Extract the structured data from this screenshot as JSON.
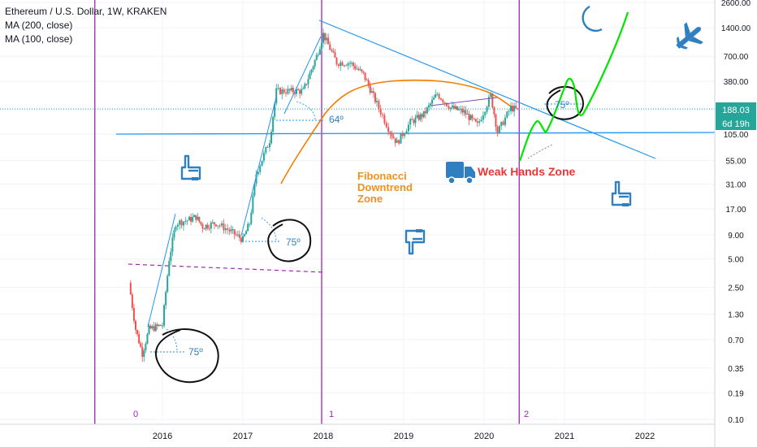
{
  "legend": {
    "title": "Ethereum / U.S. Dollar, 1W, KRAKEN",
    "ma200": "MA (200, close)",
    "ma100": "MA (100, close)"
  },
  "price_badge": {
    "value": "188.03",
    "countdown": "6d 19h",
    "color": "#26a69a"
  },
  "annotations": {
    "fib_line1": "Fibonacci",
    "fib_line2": "Downtrend",
    "fib_line3": "Zone",
    "weak_hands": "Weak Hands Zone",
    "angle_75_a": "75º",
    "angle_75_b": "75º",
    "angle_64": "64º",
    "angle_75_c": "75º"
  },
  "cycle_labels": [
    "0",
    "1",
    "2"
  ],
  "icons": [
    "pointing-hand-icon",
    "moon-icon",
    "airplane-icon",
    "truck-icon"
  ],
  "colors": {
    "cycle_lines": "#9c27b0",
    "trendline": "#2196f3",
    "ma100": "#f57c00",
    "projection": "#00e600",
    "fib_text": "#f0901f",
    "weak_hands_text": "#e53935",
    "icon_blue": "#2f7fc1",
    "up_candle": "#26a69a",
    "down_candle": "#ef5350"
  },
  "chart_data": {
    "type": "candlestick",
    "title": "Ethereum / U.S. Dollar, 1W, KRAKEN",
    "y_scale": "log",
    "y_ticks": [
      "2600.00",
      "1400.00",
      "700.00",
      "380.00",
      "188.03",
      "105.00",
      "55.00",
      "31.00",
      "17.00",
      "9.00",
      "5.00",
      "2.50",
      "1.30",
      "0.70",
      "0.35",
      "0.19",
      "0.10"
    ],
    "x_ticks": [
      "2016",
      "2017",
      "2018",
      "2019",
      "2020",
      "2021",
      "2022"
    ],
    "series": [
      {
        "name": "ETHUSD",
        "close_path": [
          [
            "2015-08",
            2.8
          ],
          [
            "2015-09",
            0.9
          ],
          [
            "2015-10",
            0.5
          ],
          [
            "2015-11",
            0.9
          ],
          [
            "2016-01",
            1.0
          ],
          [
            "2016-02",
            5.0
          ],
          [
            "2016-03",
            12.0
          ],
          [
            "2016-05",
            13.0
          ],
          [
            "2016-06",
            14.0
          ],
          [
            "2016-07",
            11.0
          ],
          [
            "2016-09",
            12.0
          ],
          [
            "2016-11",
            10.0
          ],
          [
            "2017-01",
            8.0
          ],
          [
            "2017-02",
            12.0
          ],
          [
            "2017-03",
            40.0
          ],
          [
            "2017-05",
            90.0
          ],
          [
            "2017-06",
            300.0
          ],
          [
            "2017-08",
            300.0
          ],
          [
            "2017-10",
            300.0
          ],
          [
            "2017-12",
            700.0
          ],
          [
            "2018-01",
            1200.0
          ],
          [
            "2018-03",
            600.0
          ],
          [
            "2018-05",
            600.0
          ],
          [
            "2018-07",
            450.0
          ],
          [
            "2018-09",
            220.0
          ],
          [
            "2018-11",
            110.0
          ],
          [
            "2018-12",
            85.0
          ],
          [
            "2019-02",
            140.0
          ],
          [
            "2019-04",
            170.0
          ],
          [
            "2019-06",
            280.0
          ],
          [
            "2019-08",
            200.0
          ],
          [
            "2019-10",
            180.0
          ],
          [
            "2019-12",
            130.0
          ],
          [
            "2020-02",
            270.0
          ],
          [
            "2020-03",
            110.0
          ],
          [
            "2020-05",
            200.0
          ],
          [
            "2020-06",
            188.03
          ]
        ]
      },
      {
        "name": "MA (100, close)",
        "points": [
          [
            "2017-08",
            30
          ],
          [
            "2018-01",
            170
          ],
          [
            "2018-06",
            320
          ],
          [
            "2019-01",
            370
          ],
          [
            "2019-06",
            380
          ],
          [
            "2020-01",
            330
          ],
          [
            "2020-04",
            260
          ]
        ]
      }
    ],
    "projection": [
      [
        "2020-06",
        60
      ],
      [
        "2020-09",
        180
      ],
      [
        "2021-01",
        380
      ],
      [
        "2021-04",
        150
      ],
      [
        "2021-10",
        1650
      ]
    ],
    "horizontal_levels": [
      105.0
    ],
    "cycle_markers": [
      {
        "label": "0",
        "date": "2015-08"
      },
      {
        "label": "1",
        "date": "2018-01"
      },
      {
        "label": "2",
        "date": "2020-06"
      }
    ]
  }
}
